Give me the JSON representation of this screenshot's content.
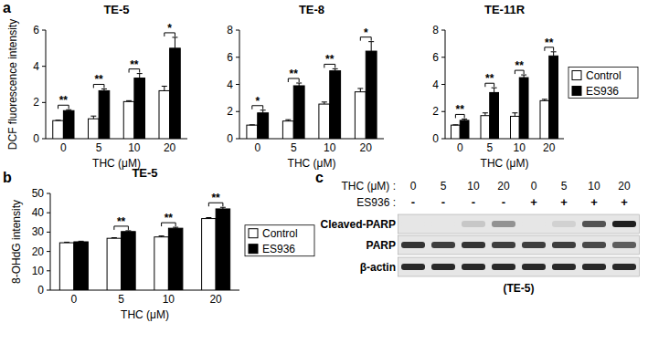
{
  "chart_data": [
    {
      "type": "bar",
      "title": "TE-5",
      "y_label": "DCF fluorescence intensity",
      "x_label": "THC (μM)",
      "categories": [
        "0",
        "5",
        "10",
        "20"
      ],
      "series": [
        {
          "color": "#ffffff",
          "values": [
            1.0,
            1.1,
            2.05,
            2.65
          ],
          "errors": [
            0.02,
            0.15,
            0.05,
            0.25
          ]
        },
        {
          "color": "#000000",
          "values": [
            1.55,
            2.65,
            3.35,
            5.0
          ],
          "errors": [
            0.05,
            0.1,
            0.25,
            0.6
          ]
        }
      ],
      "ylim": [
        0,
        6
      ],
      "yticks": [
        0,
        2,
        4,
        6
      ],
      "annotations": [
        "**",
        "**",
        "**",
        "*"
      ]
    },
    {
      "type": "bar",
      "title": "TE-8",
      "x_label": "THC (μM)",
      "categories": [
        "0",
        "5",
        "10",
        "20"
      ],
      "series": [
        {
          "color": "#ffffff",
          "values": [
            1.0,
            1.3,
            2.55,
            3.45
          ],
          "errors": [
            0.02,
            0.1,
            0.15,
            0.25
          ]
        },
        {
          "color": "#000000",
          "values": [
            1.9,
            3.9,
            5.0,
            6.45
          ],
          "errors": [
            0.2,
            0.2,
            0.15,
            0.7
          ]
        }
      ],
      "ylim": [
        0,
        8
      ],
      "yticks": [
        0,
        2,
        4,
        6,
        8
      ],
      "annotations": [
        "*",
        "**",
        "**",
        "*"
      ]
    },
    {
      "type": "bar",
      "title": "TE-11R",
      "x_label": "THC (μM)",
      "categories": [
        "0",
        "5",
        "10",
        "20"
      ],
      "series": [
        {
          "name": "Control",
          "color": "#ffffff",
          "values": [
            1.0,
            1.7,
            1.65,
            2.8
          ],
          "errors": [
            0.02,
            0.2,
            0.25,
            0.1
          ]
        },
        {
          "name": "ES936",
          "color": "#000000",
          "values": [
            1.35,
            3.4,
            4.5,
            6.1
          ],
          "errors": [
            0.1,
            0.35,
            0.2,
            0.3
          ]
        }
      ],
      "ylim": [
        0,
        8
      ],
      "yticks": [
        0,
        2,
        4,
        6,
        8
      ],
      "annotations": [
        "**",
        "**",
        "**",
        "**"
      ],
      "legend": "right"
    },
    {
      "type": "bar",
      "title": "TE-5",
      "y_label": "8-OHdG intensity",
      "x_label": "THC (μM)",
      "categories": [
        "0",
        "5",
        "10",
        "20"
      ],
      "series": [
        {
          "name": "Control",
          "color": "#ffffff",
          "values": [
            24.5,
            26.8,
            27.5,
            37.0
          ],
          "errors": [
            0.3,
            0.3,
            0.5,
            0.5
          ]
        },
        {
          "name": "ES936",
          "color": "#000000",
          "values": [
            25.0,
            30.3,
            32.0,
            42.0
          ],
          "errors": [
            0.3,
            0.4,
            0.5,
            0.8
          ]
        }
      ],
      "ylim": [
        0,
        50
      ],
      "yticks": [
        0,
        10,
        20,
        30,
        40,
        50
      ],
      "annotations": [
        null,
        "**",
        "**",
        "**"
      ],
      "legend": "right"
    }
  ],
  "panels": [
    "a",
    "b",
    "c"
  ],
  "blot": {
    "thc_label": "THC (μM) :",
    "thc": [
      "0",
      "5",
      "10",
      "20",
      "0",
      "5",
      "10",
      "20"
    ],
    "es936_label": "ES936 :",
    "es936": [
      "-",
      "-",
      "-",
      "-",
      "+",
      "+",
      "+",
      "+"
    ],
    "rows": [
      {
        "label": "Cleaved-PARP",
        "intensity": [
          0,
          0,
          0.15,
          0.4,
          0,
          0.1,
          0.7,
          0.95
        ]
      },
      {
        "label": "PARP",
        "intensity": [
          0.85,
          0.8,
          0.85,
          0.8,
          0.8,
          0.8,
          0.75,
          0.65
        ]
      },
      {
        "label": "β-actin",
        "intensity": [
          0.9,
          0.9,
          0.9,
          0.9,
          0.9,
          0.9,
          0.9,
          0.9
        ]
      }
    ],
    "caption": "(TE-5)"
  }
}
